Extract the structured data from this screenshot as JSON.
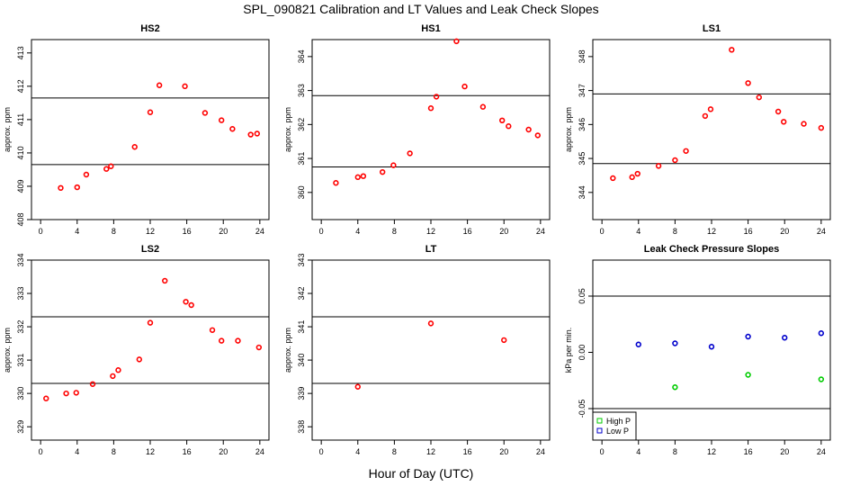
{
  "figure": {
    "title": "SPL_090821  Calibration and LT Values and Leak Check Slopes",
    "xlabel": "Hour of Day (UTC)"
  },
  "chart_data": [
    {
      "type": "scatter",
      "title": "HS2",
      "ylabel": "approx. ppm",
      "xlim": [
        -1,
        25
      ],
      "ylim": [
        408,
        413.4
      ],
      "xticks": [
        0,
        4,
        8,
        12,
        16,
        20,
        24
      ],
      "yticks": [
        408,
        409,
        410,
        411,
        412,
        413
      ],
      "hlines": [
        409.65,
        411.65
      ],
      "series": [
        {
          "color": "#ff0000",
          "x": [
            2.2,
            4.0,
            5.0,
            7.2,
            7.7,
            10.3,
            12.0,
            13.0,
            15.8,
            18.0,
            19.8,
            21.0,
            23.0,
            23.7
          ],
          "y": [
            408.95,
            408.97,
            409.35,
            409.52,
            409.6,
            410.18,
            411.22,
            412.03,
            412.0,
            411.2,
            410.98,
            410.72,
            410.55,
            410.58
          ]
        }
      ]
    },
    {
      "type": "scatter",
      "title": "HS1",
      "ylabel": "approx. ppm",
      "xlim": [
        -1,
        25
      ],
      "ylim": [
        359.2,
        364.5
      ],
      "xticks": [
        0,
        4,
        8,
        12,
        16,
        20,
        24
      ],
      "yticks": [
        360,
        361,
        362,
        363,
        364
      ],
      "hlines": [
        360.75,
        362.85
      ],
      "series": [
        {
          "color": "#ff0000",
          "x": [
            1.6,
            4.0,
            4.6,
            6.7,
            7.9,
            9.7,
            12.0,
            12.6,
            14.8,
            15.7,
            17.7,
            19.8,
            20.5,
            22.7,
            23.7
          ],
          "y": [
            360.28,
            360.45,
            360.48,
            360.6,
            360.8,
            361.15,
            362.48,
            362.82,
            364.45,
            363.12,
            362.52,
            362.12,
            361.95,
            361.85,
            361.68
          ]
        }
      ]
    },
    {
      "type": "scatter",
      "title": "LS1",
      "ylabel": "approx. ppm",
      "xlim": [
        -1,
        25
      ],
      "ylim": [
        343.2,
        348.5
      ],
      "xticks": [
        0,
        4,
        8,
        12,
        16,
        20,
        24
      ],
      "yticks": [
        344,
        345,
        346,
        347,
        348
      ],
      "hlines": [
        344.85,
        346.9
      ],
      "series": [
        {
          "color": "#ff0000",
          "x": [
            1.2,
            3.3,
            3.9,
            6.2,
            8.0,
            9.2,
            11.3,
            11.9,
            14.2,
            16.0,
            17.2,
            19.3,
            19.9,
            22.1,
            24.0
          ],
          "y": [
            344.42,
            344.45,
            344.55,
            344.78,
            344.95,
            345.22,
            346.25,
            346.45,
            348.2,
            347.22,
            346.8,
            346.38,
            346.08,
            346.02,
            345.9
          ]
        }
      ]
    },
    {
      "type": "scatter",
      "title": "LS2",
      "ylabel": "approx. ppm",
      "xlim": [
        -1,
        25
      ],
      "ylim": [
        328.6,
        334.0
      ],
      "xticks": [
        0,
        4,
        8,
        12,
        16,
        20,
        24
      ],
      "yticks": [
        329,
        330,
        331,
        332,
        333,
        334
      ],
      "hlines": [
        330.3,
        332.3
      ],
      "series": [
        {
          "color": "#ff0000",
          "x": [
            0.6,
            2.8,
            3.9,
            5.7,
            7.9,
            8.5,
            10.8,
            12.0,
            13.6,
            15.9,
            16.5,
            18.8,
            19.8,
            21.6,
            23.9
          ],
          "y": [
            329.85,
            330.0,
            330.02,
            330.28,
            330.52,
            330.7,
            331.02,
            332.12,
            333.38,
            332.75,
            332.65,
            331.9,
            331.58,
            331.58,
            331.38
          ]
        }
      ]
    },
    {
      "type": "scatter",
      "title": "LT",
      "ylabel": "approx. ppm",
      "xlim": [
        -1,
        25
      ],
      "ylim": [
        337.6,
        343.0
      ],
      "xticks": [
        0,
        4,
        8,
        12,
        16,
        20,
        24
      ],
      "yticks": [
        338,
        339,
        340,
        341,
        342,
        343
      ],
      "hlines": [
        339.3,
        341.3
      ],
      "series": [
        {
          "color": "#ff0000",
          "x": [
            4.0,
            12.0,
            20.0
          ],
          "y": [
            339.2,
            341.1,
            340.6
          ]
        }
      ]
    },
    {
      "type": "scatter",
      "title": "Leak Check Pressure Slopes",
      "ylabel": "kPa per min.",
      "xlim": [
        -1,
        25
      ],
      "ylim": [
        -0.078,
        0.082
      ],
      "xticks": [
        0,
        4,
        8,
        12,
        16,
        20,
        24
      ],
      "yticks": [
        -0.05,
        0.0,
        0.05
      ],
      "ytick_labels": [
        "-0.05",
        "0.00",
        "0.05"
      ],
      "hlines": [
        -0.05,
        0.05
      ],
      "legend": {
        "position": "bottom-left",
        "markers": "square"
      },
      "series": [
        {
          "name": "High P",
          "color": "#00cc00",
          "x": [
            8.0,
            16.0,
            24.0
          ],
          "y": [
            -0.031,
            -0.02,
            -0.024
          ]
        },
        {
          "name": "Low P",
          "color": "#0000cc",
          "x": [
            4.0,
            8.0,
            12.0,
            16.0,
            20.0,
            24.0
          ],
          "y": [
            0.007,
            0.008,
            0.005,
            0.014,
            0.013,
            0.017
          ]
        }
      ]
    }
  ]
}
